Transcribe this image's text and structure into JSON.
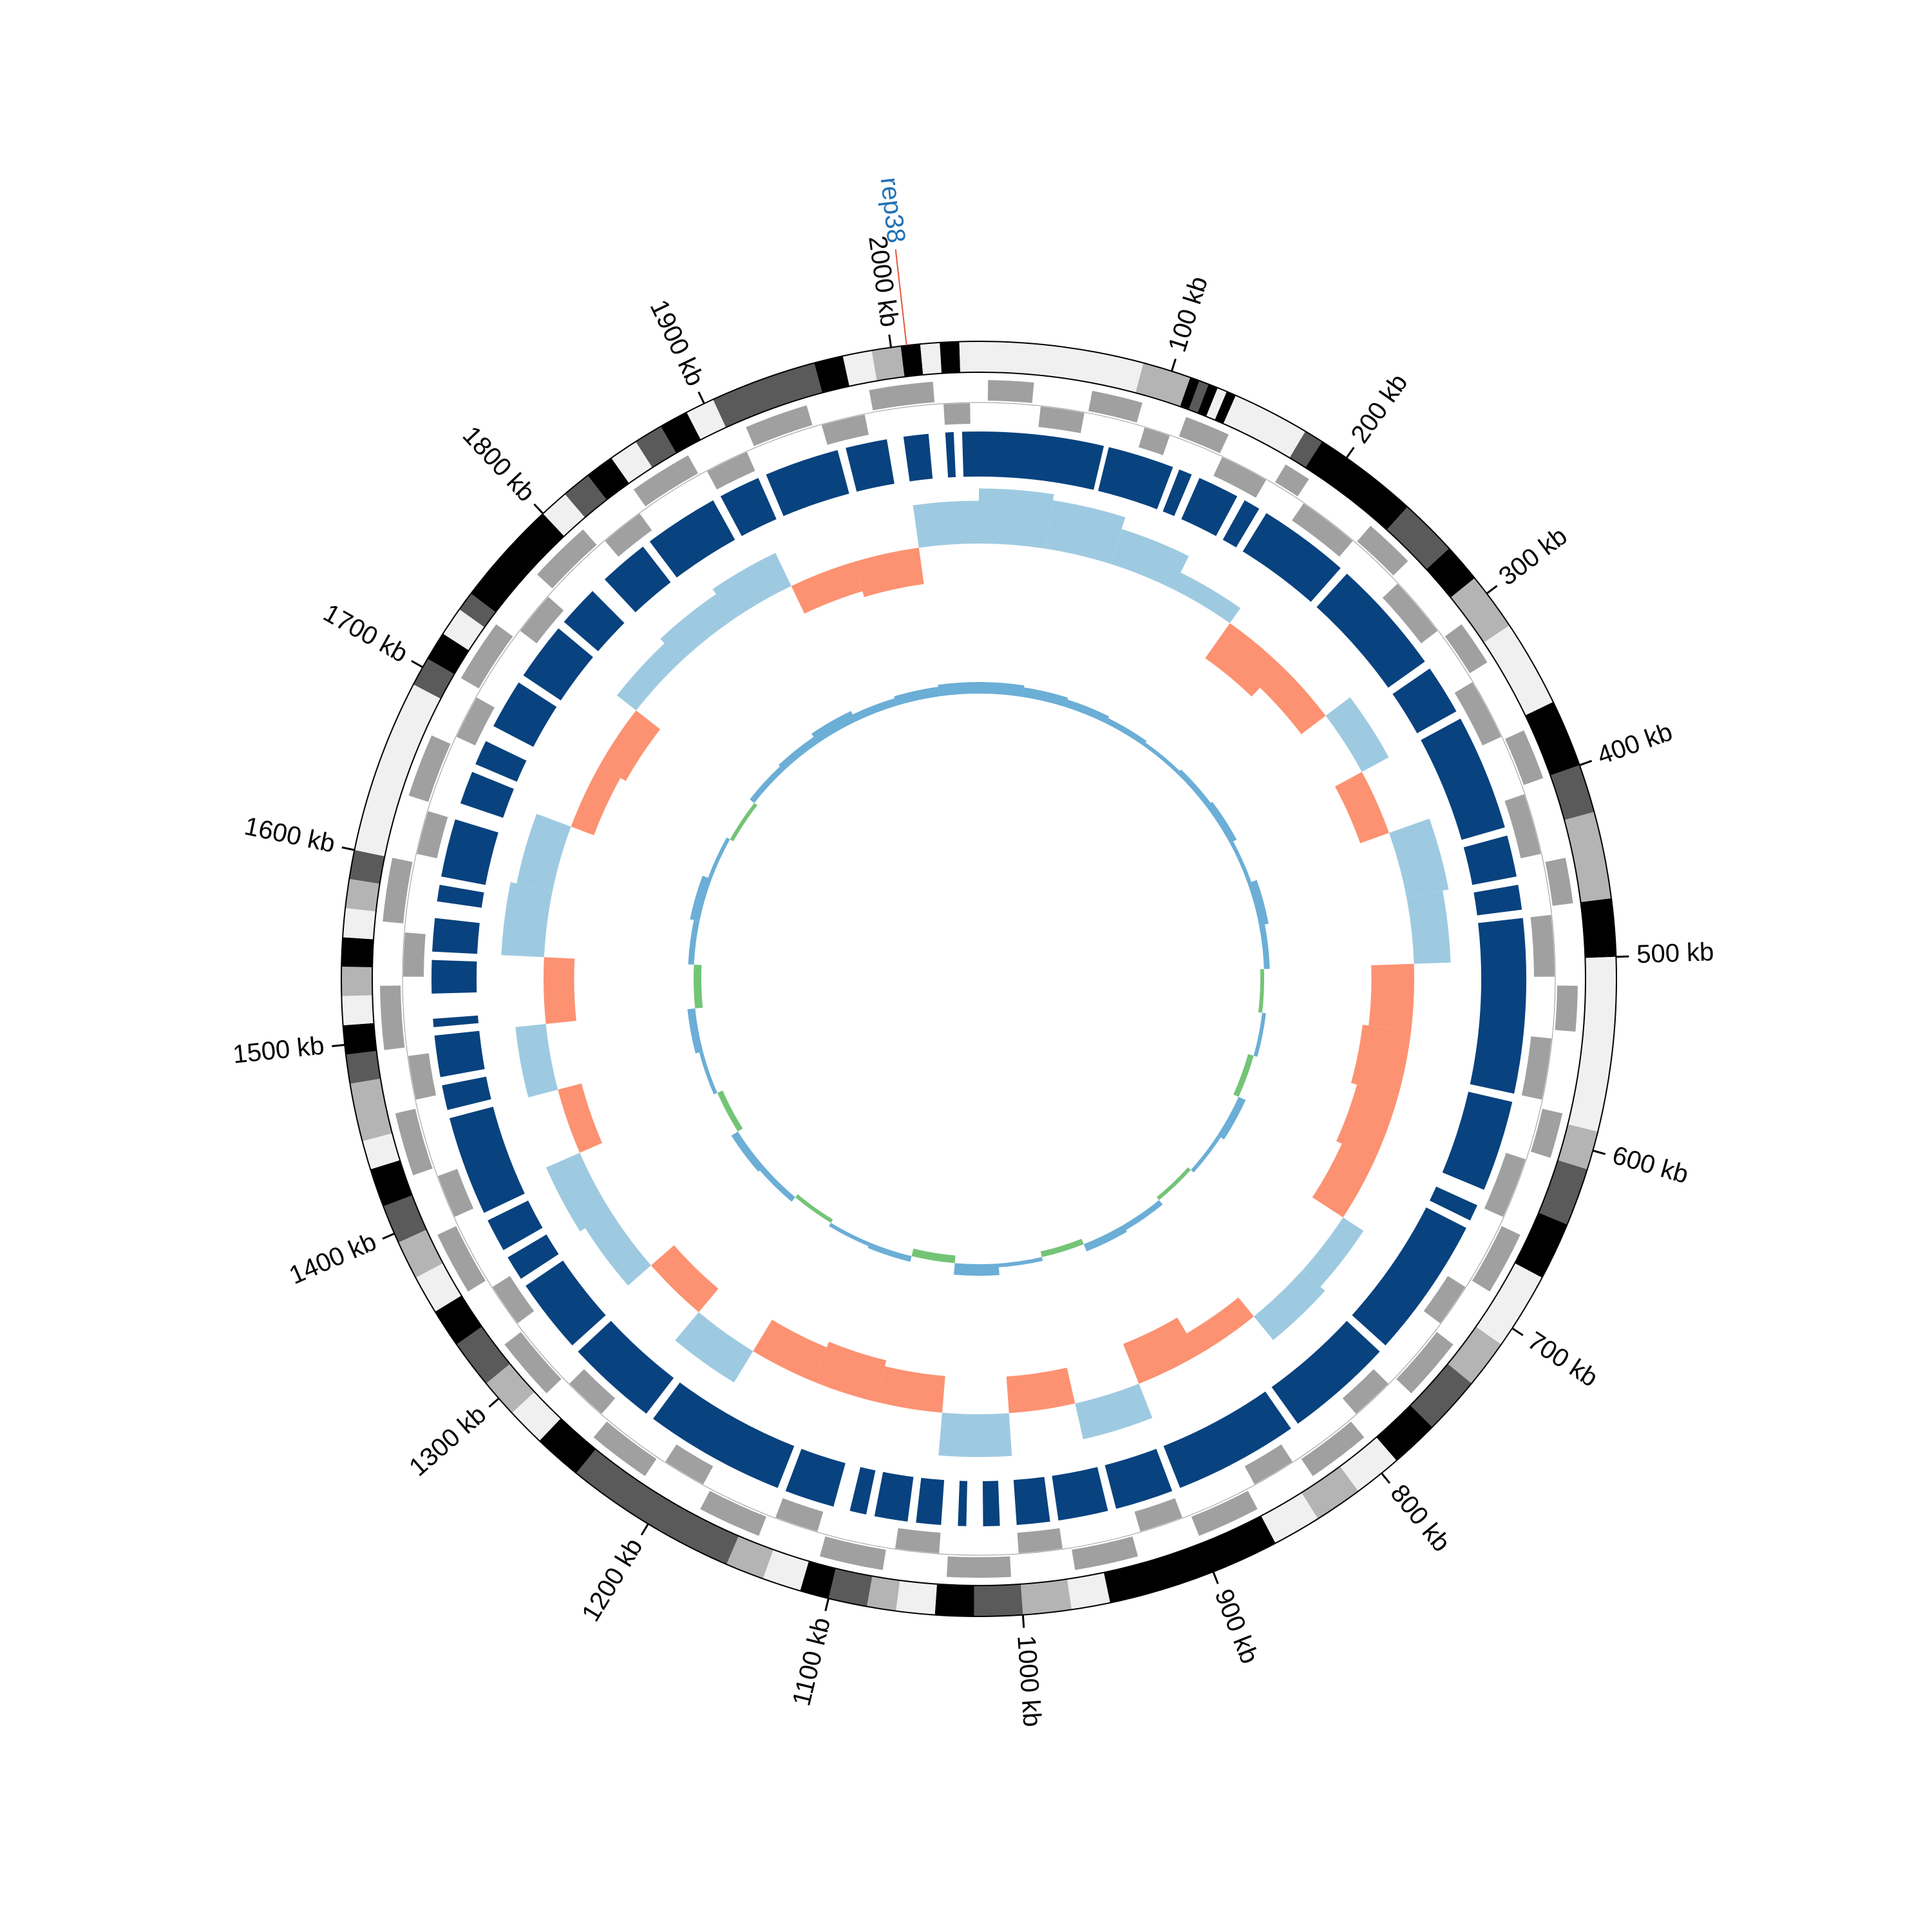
{
  "chart_data": {
    "type": "circos",
    "xlim": [
      0,
      2045
    ],
    "xticks": [
      {
        "value": 100,
        "label": "100 kb"
      },
      {
        "value": 200,
        "label": "200 kb"
      },
      {
        "value": 300,
        "label": "300 kb"
      },
      {
        "value": 400,
        "label": "400 kb"
      },
      {
        "value": 500,
        "label": "500 kb"
      },
      {
        "value": 600,
        "label": "600 kb"
      },
      {
        "value": 700,
        "label": "700 kb"
      },
      {
        "value": 800,
        "label": "800 kb"
      },
      {
        "value": 900,
        "label": "900 kb"
      },
      {
        "value": 1000,
        "label": "1000 kb"
      },
      {
        "value": 1100,
        "label": "1100 kb"
      },
      {
        "value": 1200,
        "label": "1200 kb"
      },
      {
        "value": 1300,
        "label": "1300 kb"
      },
      {
        "value": 1400,
        "label": "1400 kb"
      },
      {
        "value": 1500,
        "label": "1500 kb"
      },
      {
        "value": 1600,
        "label": "1600 kb"
      },
      {
        "value": 1700,
        "label": "1700 kb"
      },
      {
        "value": 1800,
        "label": "1800 kb"
      },
      {
        "value": 1900,
        "label": "1900 kb"
      },
      {
        "value": 2000,
        "label": "2000 kb"
      }
    ],
    "ideogram": {
      "edges": [
        0,
        85,
        110,
        115,
        120,
        125,
        130,
        135,
        175,
        185,
        240,
        270,
        290,
        320,
        365,
        400,
        425,
        470,
        500,
        590,
        610,
        640,
        670,
        710,
        735,
        765,
        790,
        815,
        840,
        865,
        955,
        975,
        1000,
        1025,
        1045,
        1065,
        1080,
        1100,
        1115,
        1135,
        1155,
        1245,
        1270,
        1290,
        1310,
        1335,
        1355,
        1375,
        1395,
        1415,
        1435,
        1450,
        1480,
        1495,
        1510,
        1525,
        1540,
        1555,
        1570,
        1585,
        1600,
        1690,
        1705,
        1720,
        1735,
        1745,
        1800,
        1815,
        1830,
        1845,
        1860,
        1875,
        1890,
        1905,
        1960,
        1975,
        1990,
        2005,
        2015,
        2025,
        2035,
        2045
      ],
      "colors": [
        "#f0f0f0",
        "#b4b4b4",
        "#000000",
        "#5a5a5a",
        "#000000",
        "#f0f0f0",
        "#000000",
        "#f0f0f0",
        "#5a5a5a",
        "#000000",
        "#5a5a5a",
        "#000000",
        "#b4b4b4",
        "#f0f0f0",
        "#000000",
        "#5a5a5a",
        "#b4b4b4",
        "#000000",
        "#f0f0f0",
        "#b4b4b4",
        "#5a5a5a",
        "#000000",
        "#f0f0f0",
        "#b4b4b4",
        "#5a5a5a",
        "#000000",
        "#f0f0f0",
        "#b4b4b4",
        "#f0f0f0",
        "#000000",
        "#f0f0f0",
        "#b4b4b4",
        "#5a5a5a",
        "#000000",
        "#f0f0f0",
        "#b4b4b4",
        "#5a5a5a",
        "#000000",
        "#f0f0f0",
        "#b4b4b4",
        "#5a5a5a",
        "#000000",
        "#f0f0f0",
        "#b4b4b4",
        "#5a5a5a",
        "#000000",
        "#f0f0f0",
        "#b4b4b4",
        "#5a5a5a",
        "#000000",
        "#f0f0f0",
        "#b4b4b4",
        "#5a5a5a",
        "#000000",
        "#f0f0f0",
        "#b4b4b4",
        "#000000",
        "#f0f0f0",
        "#b4b4b4",
        "#5a5a5a",
        "#f0f0f0",
        "#5a5a5a",
        "#000000",
        "#f0f0f0",
        "#5a5a5a",
        "#000000",
        "#f0f0f0",
        "#5a5a5a",
        "#000000",
        "#f0f0f0",
        "#5a5a5a",
        "#000000",
        "#f0f0f0",
        "#5a5a5a",
        "#000000",
        "#f0f0f0",
        "#b4b4b4",
        "#000000",
        "#f0f0f0",
        "#000000",
        "#f0f0f0"
      ]
    },
    "genes": {
      "color": "#a0a0a0",
      "start": [
        5,
        35,
        62,
        95,
        115,
        142,
        175,
        195,
        232,
        265,
        305,
        335,
        372,
        405,
        445,
        475,
        515,
        545,
        585,
        615,
        655,
        695,
        725,
        765,
        795,
        835,
        865,
        905,
        935,
        975,
        1005,
        1045,
        1075,
        1115,
        1145,
        1185,
        1215,
        1255,
        1285,
        1325,
        1355,
        1395,
        1425,
        1465,
        1495,
        1535,
        1565,
        1605,
        1635,
        1675,
        1705,
        1745,
        1775,
        1815,
        1845,
        1885,
        1915,
        1955,
        1985,
        2025
      ],
      "end": [
        30,
        60,
        90,
        110,
        140,
        170,
        190,
        230,
        260,
        300,
        330,
        370,
        400,
        440,
        470,
        510,
        540,
        580,
        610,
        650,
        690,
        720,
        760,
        790,
        830,
        860,
        900,
        930,
        970,
        1000,
        1040,
        1070,
        1110,
        1140,
        1180,
        1210,
        1250,
        1280,
        1320,
        1350,
        1390,
        1420,
        1460,
        1490,
        1530,
        1560,
        1600,
        1630,
        1670,
        1700,
        1740,
        1770,
        1810,
        1840,
        1880,
        1910,
        1950,
        1980,
        2020,
        2040
      ],
      "strand": [
        1,
        -1,
        1,
        -1,
        1,
        -1,
        1,
        -1,
        1,
        -1,
        1,
        -1,
        1,
        -1,
        1,
        -1,
        1,
        -1,
        1,
        -1,
        1,
        -1,
        1,
        -1,
        1,
        -1,
        1,
        -1,
        1,
        -1,
        1,
        -1,
        1,
        -1,
        1,
        -1,
        1,
        -1,
        1,
        -1,
        1,
        -1,
        1,
        -1,
        1,
        -1,
        1,
        -1,
        1,
        -1,
        1,
        -1,
        1,
        -1,
        1,
        -1,
        1,
        -1,
        1,
        -1
      ]
    },
    "blocks": {
      "color": "#08427f",
      "start": [
        0,
        78,
        122,
        135,
        165,
        180,
        240,
        315,
        350,
        425,
        455,
        475,
        585,
        650,
        665,
        755,
        825,
        905,
        945,
        980,
        1010,
        1030,
        1045,
        1065,
        1090,
        1110,
        1145,
        1235,
        1295,
        1345,
        1365,
        1390,
        1455,
        1475,
        1505,
        1525,
        1550,
        1580,
        1595,
        1640,
        1665,
        1690,
        1725,
        1765,
        1800,
        1835,
        1885,
        1915,
        1965,
        2000,
        2025,
        2035
      ],
      "end": [
        75,
        118,
        130,
        160,
        175,
        235,
        310,
        345,
        420,
        450,
        470,
        580,
        640,
        660,
        750,
        820,
        900,
        940,
        975,
        1000,
        1020,
        1035,
        1060,
        1085,
        1100,
        1140,
        1230,
        1290,
        1340,
        1360,
        1385,
        1450,
        1470,
        1500,
        1510,
        1545,
        1570,
        1590,
        1630,
        1660,
        1680,
        1720,
        1760,
        1790,
        1830,
        1880,
        1910,
        1960,
        1990,
        2015,
        2030,
        2045
      ]
    },
    "skew": {
      "colors": [
        "#9ecae1",
        "#fc9272"
      ],
      "ylim": [
        -1,
        1
      ],
      "x": [
        0,
        50,
        100,
        150,
        200,
        250,
        300,
        350,
        400,
        450,
        500,
        550,
        600,
        650,
        700,
        750,
        800,
        850,
        900,
        950,
        1000,
        1050,
        1100,
        1150,
        1200,
        1250,
        1300,
        1350,
        1400,
        1450,
        1500,
        1550,
        1600,
        1650,
        1700,
        1750,
        1800,
        1850,
        1900,
        1950,
        2000
      ],
      "values": [
        0.9,
        0.8,
        0.6,
        0.3,
        -0.7,
        -0.5,
        0.5,
        -0.5,
        0.7,
        0.6,
        -0.7,
        -0.8,
        -0.7,
        -0.6,
        0.4,
        0.5,
        -0.4,
        -0.7,
        0.6,
        -0.6,
        0.7,
        -0.6,
        -0.7,
        -0.6,
        0.6,
        -0.5,
        0.5,
        0.6,
        -0.4,
        0.5,
        -0.5,
        0.7,
        0.6,
        -0.4,
        -0.5,
        0.4,
        0.5,
        0.6,
        -0.5,
        -0.6,
        0.7
      ]
    },
    "gc": {
      "colors": [
        "#6baed6",
        "#74c476"
      ],
      "ylim": [
        -1,
        1
      ],
      "values": [
        0.3,
        0.25,
        0.2,
        0.15,
        0.1,
        0.15,
        0.2,
        0.1,
        0.25,
        0.15,
        -0.1,
        0.1,
        -0.15,
        0.2,
        0.1,
        -0.1,
        0.15,
        0.2,
        -0.15,
        0.1,
        0.3,
        -0.2,
        0.15,
        0.1,
        -0.1,
        0.15,
        0.2,
        -0.15,
        0.1,
        0.2,
        -0.2,
        0.15,
        0.25,
        0.1,
        -0.1,
        0.15,
        0.2,
        0.3,
        0.2,
        0.25,
        0.3
      ]
    },
    "annotations": [
      {
        "text": "rep38",
        "x": 2008,
        "color": "#2171b5",
        "line_color": "#e6553a"
      }
    ]
  }
}
